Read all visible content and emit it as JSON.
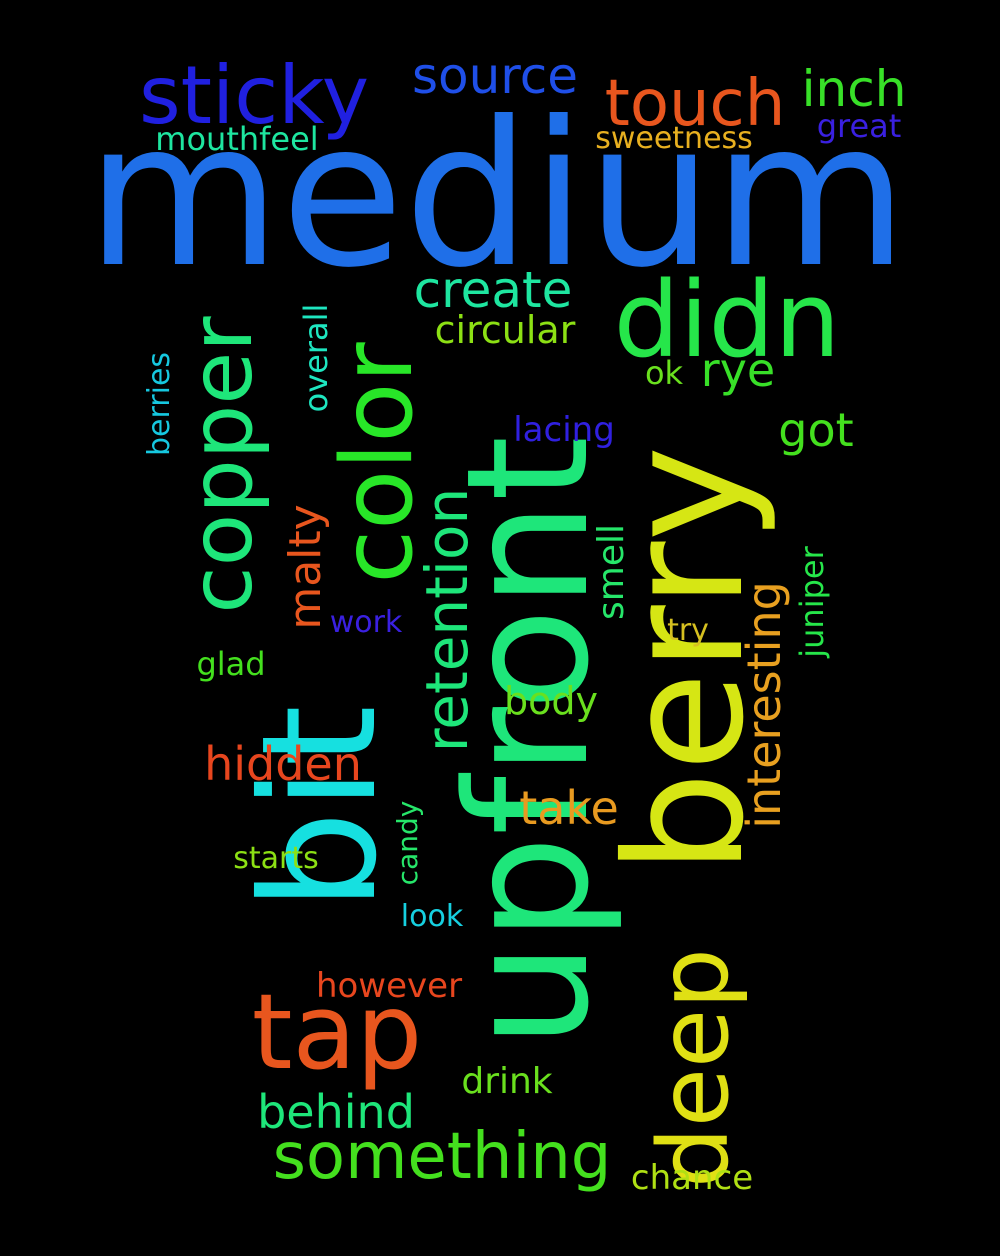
{
  "words": {
    "medium": "medium",
    "upfront": "upfront",
    "berry": "berry",
    "bit": "bit",
    "didn": "didn",
    "color": "color",
    "copper": "copper",
    "tap": "tap",
    "deep": "deep",
    "sticky": "sticky",
    "touch": "touch",
    "something": "something",
    "retention": "retention",
    "source": "source",
    "create": "create",
    "inch": "inch",
    "interesting": "interesting",
    "hidden": "hidden",
    "behind": "behind",
    "got": "got",
    "rye": "rye",
    "take": "take",
    "malty": "malty",
    "circular": "circular",
    "body": "body",
    "mouthfeel": "mouthfeel",
    "great": "great",
    "sweetness": "sweetness",
    "smell": "smell",
    "lacing": "lacing",
    "drink": "drink",
    "however": "however",
    "chance": "chance",
    "juniper": "juniper",
    "overall": "overall",
    "ok": "ok",
    "glad": "glad",
    "work": "work",
    "try": "try",
    "berries": "berries",
    "starts": "starts",
    "candy": "candy",
    "look": "look"
  },
  "colors": {
    "medium": "#1f6fe8",
    "upfront": "#1ee67a",
    "berry": "#d6e614",
    "bit": "#16e0e0",
    "didn": "#26e64a",
    "color": "#28e628",
    "copper": "#1ee67a",
    "tap": "#e8561e",
    "deep": "#e0e014",
    "sticky": "#2020e0",
    "touch": "#e8561e",
    "something": "#44e01e",
    "retention": "#1ee67a",
    "source": "#1f4fe8",
    "create": "#1ee6a0",
    "inch": "#38e028",
    "interesting": "#e8a020",
    "hidden": "#e8461e",
    "behind": "#1ee67a",
    "got": "#44e01e",
    "rye": "#38e028",
    "take": "#e89a20",
    "malty": "#e8561e",
    "circular": "#8ce014",
    "body": "#6ae01e",
    "mouthfeel": "#1ee6a0",
    "great": "#3a20e0",
    "sweetness": "#e8b020",
    "smell": "#26e66a",
    "lacing": "#3020e0",
    "drink": "#6ae01e",
    "however": "#e8461e",
    "chance": "#b0e014",
    "juniper": "#26e64a",
    "overall": "#1ee6c0",
    "ok": "#6ae01e",
    "glad": "#44e01e",
    "work": "#3a20e0",
    "try": "#d6c020",
    "berries": "#16c8e0",
    "starts": "#8ce014",
    "candy": "#26e66a",
    "look": "#16d0e0"
  }
}
